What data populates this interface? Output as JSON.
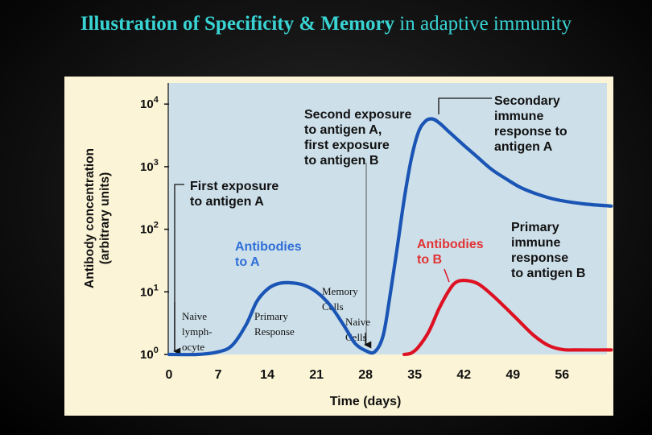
{
  "title": {
    "part1_bold": "Illustration of Specificity & Memory",
    "part2": " in adaptive immunity"
  },
  "colors": {
    "title": "#39d3d3",
    "figure_bg": "#fbf4d6",
    "plot_bg": "#cddfe9",
    "antibody_a": "#1a55b5",
    "antibody_b": "#dd1122",
    "annotation_dark": "#111111"
  },
  "chart_data": {
    "type": "line",
    "xlabel": "Time (days)",
    "ylabel_line1": "Antibody concentration",
    "ylabel_line2": "(arbitrary units)",
    "xlim": [
      0,
      63
    ],
    "x_ticks": [
      0,
      7,
      14,
      21,
      28,
      35,
      42,
      49,
      56
    ],
    "y_scale": "log",
    "y_ticks": [
      {
        "base": "10",
        "exp": "0",
        "value": 1
      },
      {
        "base": "10",
        "exp": "1",
        "value": 10
      },
      {
        "base": "10",
        "exp": "2",
        "value": 100
      },
      {
        "base": "10",
        "exp": "3",
        "value": 1000
      },
      {
        "base": "10",
        "exp": "4",
        "value": 10000
      }
    ],
    "grid": false,
    "series": [
      {
        "name": "Antibodies to A",
        "color": "#1a55b5",
        "points": [
          [
            0,
            1
          ],
          [
            4,
            1
          ],
          [
            7,
            1.1
          ],
          [
            9,
            1.4
          ],
          [
            11,
            3
          ],
          [
            12.5,
            7
          ],
          [
            14,
            11
          ],
          [
            15.5,
            13.5
          ],
          [
            17,
            14
          ],
          [
            19,
            13
          ],
          [
            21,
            10
          ],
          [
            23,
            6
          ],
          [
            25,
            2.8
          ],
          [
            26.5,
            1.5
          ],
          [
            28,
            1.15
          ],
          [
            29.3,
            1.1
          ],
          [
            30.5,
            2
          ],
          [
            31.5,
            9
          ],
          [
            32.5,
            50
          ],
          [
            33.5,
            300
          ],
          [
            34.5,
            1300
          ],
          [
            35.5,
            3500
          ],
          [
            36.5,
            5300
          ],
          [
            37.5,
            5800
          ],
          [
            38.5,
            5000
          ],
          [
            40,
            3500
          ],
          [
            42,
            2200
          ],
          [
            44,
            1400
          ],
          [
            46,
            900
          ],
          [
            48,
            640
          ],
          [
            50,
            470
          ],
          [
            52,
            380
          ],
          [
            55,
            300
          ],
          [
            59,
            255
          ],
          [
            63,
            235
          ]
        ]
      },
      {
        "name": "Antibodies to B",
        "color": "#dd1122",
        "points": [
          [
            33.5,
            1
          ],
          [
            34.5,
            1.05
          ],
          [
            35.5,
            1.3
          ],
          [
            37,
            2.3
          ],
          [
            38.5,
            5.5
          ],
          [
            40,
            11
          ],
          [
            41,
            14.5
          ],
          [
            42.3,
            15.2
          ],
          [
            44,
            13.5
          ],
          [
            46,
            9
          ],
          [
            48,
            5.5
          ],
          [
            50,
            3.3
          ],
          [
            52,
            2
          ],
          [
            54,
            1.4
          ],
          [
            56,
            1.2
          ],
          [
            58,
            1.18
          ],
          [
            63,
            1.18
          ]
        ]
      }
    ],
    "annotations": {
      "first_exposure": [
        "First exposure",
        "to antigen A"
      ],
      "second_exposure": [
        "Second exposure",
        "to antigen A,",
        "first exposure",
        "to antigen B"
      ],
      "secondary_response": [
        "Secondary",
        "immune",
        "response to",
        "antigen A"
      ],
      "primary_response_b": [
        "Primary",
        "immune",
        "response",
        "to antigen B"
      ],
      "antibodies_a": [
        "Antibodies",
        "to A"
      ],
      "antibodies_b": [
        "Antibodies",
        "to B"
      ],
      "naive_lymphocyte": [
        "Naive",
        "lymph-",
        "ocyte"
      ],
      "primary_response": [
        "Primary",
        "Response"
      ],
      "memory_cells": [
        "Memory",
        "Cells"
      ],
      "naive_cells": [
        "Naive",
        "Cells"
      ]
    }
  }
}
